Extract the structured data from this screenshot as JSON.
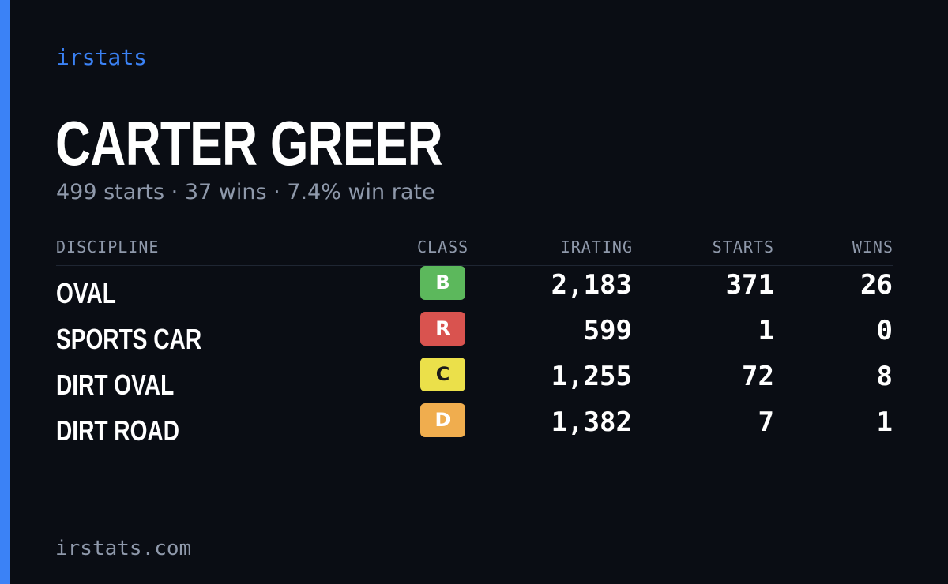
{
  "brand": "irstats",
  "driver": {
    "name": "CARTER GREER",
    "starts": "499 starts",
    "wins": "37 wins",
    "win_rate": "7.4% win rate",
    "separator": " · "
  },
  "table": {
    "headers": {
      "discipline": "DISCIPLINE",
      "class": "CLASS",
      "irating": "IRATING",
      "starts": "STARTS",
      "wins": "WINS"
    },
    "rows": [
      {
        "discipline": "OVAL",
        "class": "B",
        "class_color": "#5cb85c",
        "class_text_color": "#ffffff",
        "irating": "2,183",
        "starts": "371",
        "wins": "26"
      },
      {
        "discipline": "SPORTS CAR",
        "class": "R",
        "class_color": "#d9534f",
        "class_text_color": "#ffffff",
        "irating": "599",
        "starts": "1",
        "wins": "0"
      },
      {
        "discipline": "DIRT OVAL",
        "class": "C",
        "class_color": "#ebe04a",
        "class_text_color": "#1a1a1a",
        "irating": "1,255",
        "starts": "72",
        "wins": "8"
      },
      {
        "discipline": "DIRT ROAD",
        "class": "D",
        "class_color": "#f0ad4e",
        "class_text_color": "#ffffff",
        "irating": "1,382",
        "starts": "7",
        "wins": "1"
      }
    ]
  },
  "footer": "irstats.com",
  "colors": {
    "background": "#0a0d14",
    "accent": "#3b82f6",
    "muted": "#8f99ab"
  }
}
